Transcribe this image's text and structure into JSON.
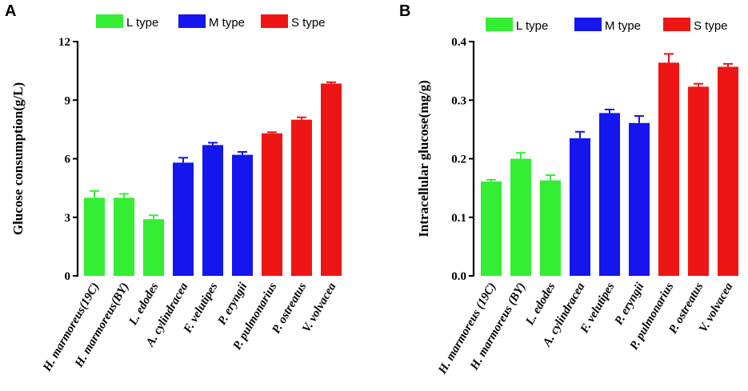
{
  "figure": {
    "colors": {
      "L type": "#33ee33",
      "M type": "#1515ee",
      "S type": "#ee1515"
    }
  },
  "chart_data": [
    {
      "panel": "A",
      "type": "bar",
      "title": "",
      "xlabel": "",
      "ylabel": "Glucose consumption(g/L)",
      "ylim": [
        0,
        12
      ],
      "yticks": [
        0,
        3,
        6,
        9,
        12
      ],
      "ytick_labels": [
        "0",
        "3",
        "6",
        "9",
        "12"
      ],
      "legend": [
        "L type",
        "M type",
        "S type"
      ],
      "legend_position": "top",
      "categories": [
        "H. marmoreus(19C)",
        "H. marmoreus(BY)",
        "L. edodes",
        "A. cylindracea",
        "F. velutipes",
        "P. eryngii",
        "P. pulmonarius",
        "P. ostreatus",
        "V. volvacea"
      ],
      "groups": [
        "L type",
        "L type",
        "L type",
        "M type",
        "M type",
        "M type",
        "S type",
        "S type",
        "S type"
      ],
      "values": [
        4.0,
        4.0,
        2.9,
        5.8,
        6.7,
        6.2,
        7.3,
        8.0,
        9.85
      ],
      "errors": [
        0.35,
        0.2,
        0.2,
        0.25,
        0.12,
        0.15,
        0.06,
        0.12,
        0.07
      ]
    },
    {
      "panel": "B",
      "type": "bar",
      "title": "",
      "xlabel": "",
      "ylabel": "Intracellular glucose(mg/g)",
      "ylim": [
        0,
        0.4
      ],
      "yticks": [
        0,
        0.1,
        0.2,
        0.3,
        0.4
      ],
      "ytick_labels": [
        "0.0",
        "0.1",
        "0.2",
        "0.3",
        "0.4"
      ],
      "legend": [
        "L type",
        "M type",
        "S type"
      ],
      "legend_position": "top",
      "categories": [
        "H. marmoreus (19C)",
        "H. marmoreus (BY)",
        "L. edodes",
        "A. cylindracea",
        "F. velutipes",
        "P. eryngii",
        "P. pulmonarius",
        "P. ostreatus",
        "V. volvacea"
      ],
      "groups": [
        "L type",
        "L type",
        "L type",
        "M type",
        "M type",
        "M type",
        "S type",
        "S type",
        "S type"
      ],
      "values": [
        0.161,
        0.2,
        0.163,
        0.235,
        0.278,
        0.261,
        0.364,
        0.323,
        0.357
      ],
      "errors": [
        0.003,
        0.01,
        0.009,
        0.011,
        0.006,
        0.012,
        0.015,
        0.005,
        0.005
      ]
    }
  ]
}
